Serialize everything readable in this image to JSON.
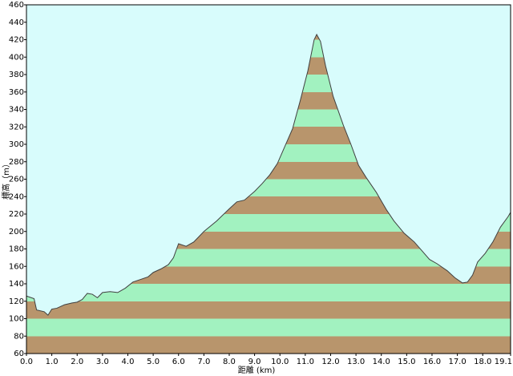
{
  "chart_data": {
    "type": "area",
    "x_label": "距離 (km)",
    "y_label": "標高（m）",
    "x": [
      0.0,
      0.3,
      0.4,
      0.7,
      0.85,
      1.0,
      1.2,
      1.5,
      1.8,
      2.0,
      2.2,
      2.4,
      2.6,
      2.8,
      3.0,
      3.3,
      3.6,
      3.9,
      4.2,
      4.5,
      4.8,
      5.0,
      5.3,
      5.6,
      5.8,
      6.0,
      6.3,
      6.6,
      7.0,
      7.5,
      8.0,
      8.3,
      8.6,
      9.0,
      9.3,
      9.6,
      9.9,
      10.2,
      10.5,
      10.8,
      11.1,
      11.35,
      11.45,
      11.6,
      11.8,
      12.1,
      12.5,
      12.8,
      13.1,
      13.4,
      13.8,
      14.2,
      14.5,
      14.9,
      15.3,
      15.6,
      15.9,
      16.2,
      16.6,
      16.9,
      17.2,
      17.4,
      17.6,
      17.8,
      18.1,
      18.4,
      18.7,
      19.0,
      19.1
    ],
    "values": [
      126,
      123,
      110,
      108,
      104,
      111,
      112,
      116,
      118,
      119,
      122,
      129,
      128,
      124,
      130,
      131,
      130,
      135,
      142,
      145,
      148,
      153,
      157,
      162,
      170,
      186,
      183,
      188,
      200,
      212,
      226,
      234,
      236,
      246,
      255,
      265,
      278,
      298,
      318,
      350,
      384,
      420,
      426,
      418,
      390,
      355,
      322,
      300,
      276,
      262,
      245,
      225,
      212,
      198,
      188,
      178,
      168,
      163,
      155,
      147,
      141,
      142,
      150,
      165,
      175,
      188,
      205,
      217,
      222
    ],
    "xlim": [
      0,
      19.1
    ],
    "ylim": [
      60,
      460
    ],
    "xticks": [
      {
        "value": 0,
        "label": "0.0"
      },
      {
        "value": 1,
        "label": "1.0"
      },
      {
        "value": 2,
        "label": "2.0"
      },
      {
        "value": 3,
        "label": "3.0"
      },
      {
        "value": 4,
        "label": "4.0"
      },
      {
        "value": 5,
        "label": "5.0"
      },
      {
        "value": 6,
        "label": "6.0"
      },
      {
        "value": 7,
        "label": "7.0"
      },
      {
        "value": 8,
        "label": "8.0"
      },
      {
        "value": 9,
        "label": "9.0"
      },
      {
        "value": 10,
        "label": "10.0"
      },
      {
        "value": 11,
        "label": "11.0"
      },
      {
        "value": 12,
        "label": "12.0"
      },
      {
        "value": 13,
        "label": "13.0"
      },
      {
        "value": 14,
        "label": "14.0"
      },
      {
        "value": 15,
        "label": "15.0"
      },
      {
        "value": 16,
        "label": "16.0"
      },
      {
        "value": 17,
        "label": "17.0"
      },
      {
        "value": 18,
        "label": "18.0"
      },
      19.1
    ],
    "yticks": [
      60,
      80,
      100,
      120,
      140,
      160,
      180,
      200,
      220,
      240,
      260,
      280,
      300,
      320,
      340,
      360,
      380,
      400,
      420,
      440,
      460
    ],
    "band_colors": [
      "#b8956c",
      "#a2f2c0"
    ],
    "background": "#d8fcfc",
    "line_color": "#404040"
  }
}
